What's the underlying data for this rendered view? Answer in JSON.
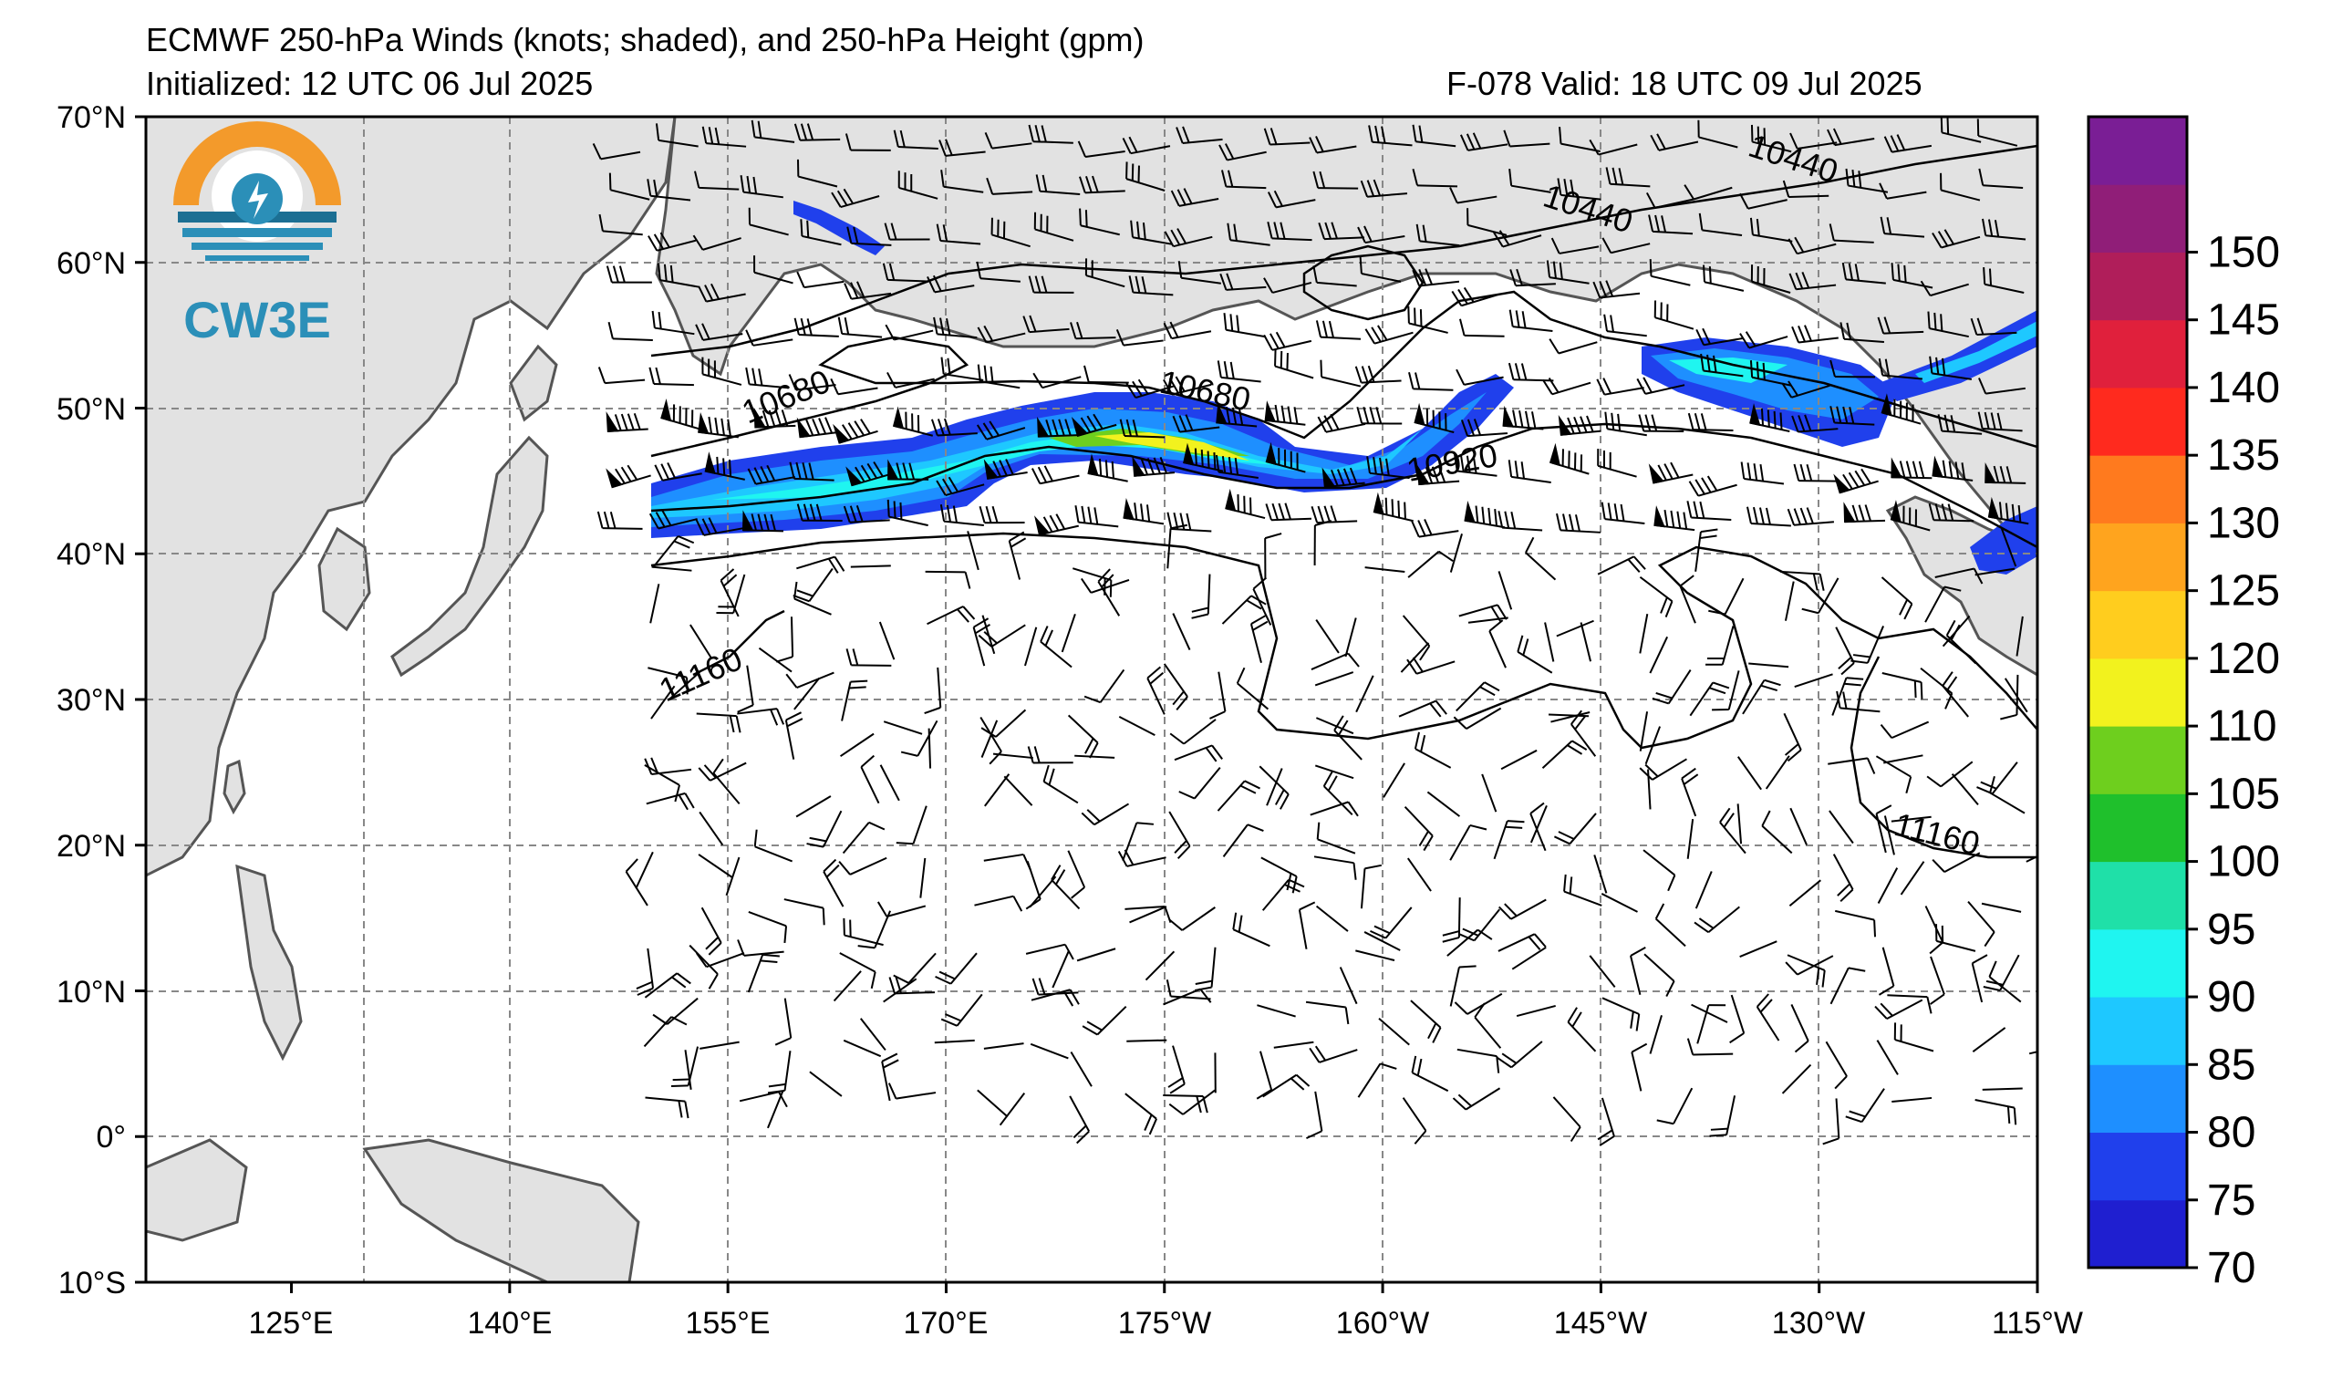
{
  "header": {
    "title": "ECMWF 250-hPa Winds (knots; shaded), and 250-hPa Height (gpm)",
    "initialized": "Initialized: 12 UTC 06 Jul 2025",
    "forecast": "F-078  Valid: 18 UTC 09 Jul 2025"
  },
  "logo": {
    "text": "CW3E",
    "colors": [
      "#f39a2b",
      "#2b8fb8",
      "#1c6f93"
    ]
  },
  "axes": {
    "lat_labels": [
      "70°N",
      "60°N",
      "50°N",
      "40°N",
      "30°N",
      "20°N",
      "10°N",
      "0°",
      "10°S"
    ],
    "lon_labels": [
      "125°E",
      "140°E",
      "155°E",
      "170°E",
      "175°W",
      "160°W",
      "145°W",
      "130°W",
      "115°W"
    ],
    "lat_values": [
      70,
      60,
      50,
      40,
      30,
      20,
      10,
      0,
      -10
    ],
    "lon_values": [
      125,
      140,
      155,
      170,
      185,
      200,
      215,
      230,
      245
    ],
    "lon_range": [
      115,
      245
    ],
    "lat_range": [
      -10,
      70
    ]
  },
  "colorbar": {
    "levels": [
      "70",
      "75",
      "80",
      "85",
      "90",
      "95",
      "100",
      "105",
      "110",
      "120",
      "125",
      "130",
      "135",
      "140",
      "145",
      "150"
    ],
    "colors": [
      "#1f1fd0",
      "#2040ec",
      "#1e8fff",
      "#1ec8ff",
      "#1ff5f0",
      "#1fe0a8",
      "#1fc02c",
      "#6ecf1e",
      "#f2f21e",
      "#ffcd1e",
      "#ffa41e",
      "#ff7a1e",
      "#ff2a1e",
      "#e0203c",
      "#b01e5a",
      "#901e78",
      "#7a1e95"
    ]
  },
  "contours": {
    "labels": [
      "10440",
      "10440",
      "10680",
      "10680",
      "10920",
      "11160",
      "11160"
    ]
  }
}
